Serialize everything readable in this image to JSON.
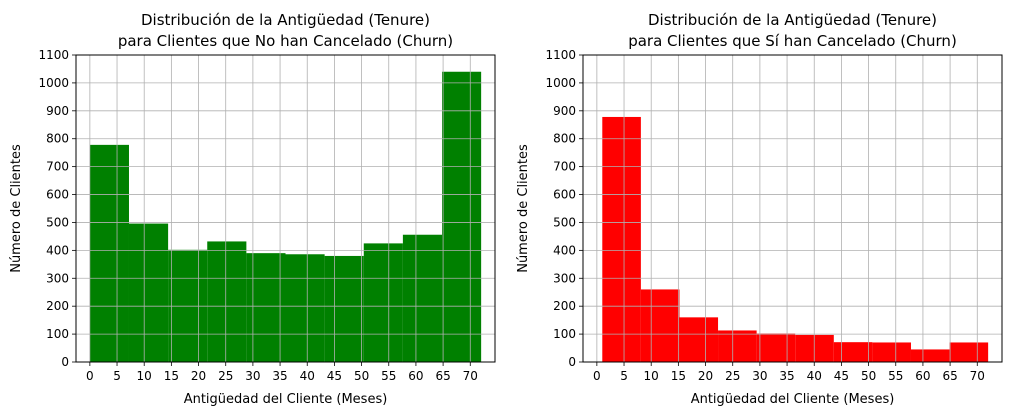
{
  "chart_data": [
    {
      "type": "bar",
      "title_lines": [
        "Distribución de la Antigüedad (Tenure)",
        "para Clientes que No han Cancelado (Churn)"
      ],
      "xlabel": "Antigüedad del Cliente (Meses)",
      "ylabel": "Número de Clientes",
      "xlim": [
        -2.55,
        74.55
      ],
      "ylim": [
        0,
        1100
      ],
      "xticks": [
        0,
        5,
        10,
        15,
        20,
        25,
        30,
        35,
        40,
        45,
        50,
        55,
        60,
        65,
        70
      ],
      "yticks": [
        0,
        100,
        200,
        300,
        400,
        500,
        600,
        700,
        800,
        900,
        1000,
        1100
      ],
      "grid": true,
      "bins": [
        {
          "x0": 0.0,
          "x1": 7.2,
          "value": 778
        },
        {
          "x0": 7.2,
          "x1": 14.4,
          "value": 496
        },
        {
          "x0": 14.4,
          "x1": 21.6,
          "value": 402
        },
        {
          "x0": 21.6,
          "x1": 28.8,
          "value": 432
        },
        {
          "x0": 28.8,
          "x1": 36.0,
          "value": 390
        },
        {
          "x0": 36.0,
          "x1": 43.2,
          "value": 386
        },
        {
          "x0": 43.2,
          "x1": 50.4,
          "value": 380
        },
        {
          "x0": 50.4,
          "x1": 57.6,
          "value": 425
        },
        {
          "x0": 57.6,
          "x1": 64.8,
          "value": 456
        },
        {
          "x0": 64.8,
          "x1": 72.0,
          "value": 1040
        }
      ],
      "color": "#008000"
    },
    {
      "type": "bar",
      "title_lines": [
        "Distribución de la Antigüedad (Tenure)",
        "para Clientes que Sí han Cancelado (Churn)"
      ],
      "xlabel": "Antigüedad del Cliente (Meses)",
      "ylabel": "Número de Clientes",
      "xlim": [
        -2.55,
        74.55
      ],
      "ylim": [
        0,
        1100
      ],
      "xticks": [
        0,
        5,
        10,
        15,
        20,
        25,
        30,
        35,
        40,
        45,
        50,
        55,
        60,
        65,
        70
      ],
      "yticks": [
        0,
        100,
        200,
        300,
        400,
        500,
        600,
        700,
        800,
        900,
        1000,
        1100
      ],
      "grid": true,
      "bins": [
        {
          "x0": 1.0,
          "x1": 8.1,
          "value": 878
        },
        {
          "x0": 8.1,
          "x1": 15.2,
          "value": 260
        },
        {
          "x0": 15.2,
          "x1": 22.3,
          "value": 160
        },
        {
          "x0": 22.3,
          "x1": 29.4,
          "value": 113
        },
        {
          "x0": 29.4,
          "x1": 36.5,
          "value": 102
        },
        {
          "x0": 36.5,
          "x1": 43.6,
          "value": 97
        },
        {
          "x0": 43.6,
          "x1": 50.7,
          "value": 71
        },
        {
          "x0": 50.7,
          "x1": 57.8,
          "value": 70
        },
        {
          "x0": 57.8,
          "x1": 64.9,
          "value": 45
        },
        {
          "x0": 64.9,
          "x1": 72.0,
          "value": 70
        }
      ],
      "color": "#ff0000"
    }
  ]
}
